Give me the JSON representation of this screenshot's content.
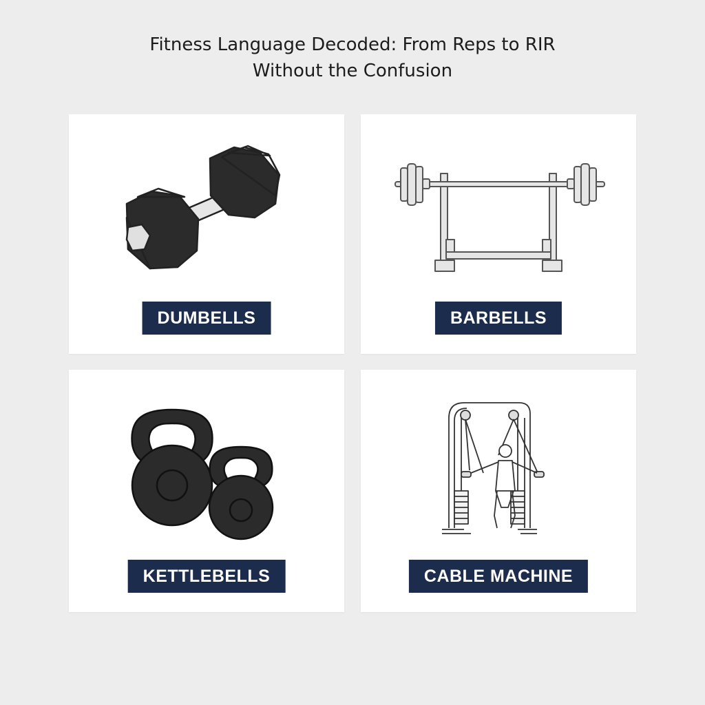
{
  "title": {
    "line1": "Fitness Language Decoded: From Reps to RIR",
    "line2": "Without the Confusion"
  },
  "cards": [
    {
      "label": "DUMBELLS",
      "icon": "dumbbell-icon"
    },
    {
      "label": "BARBELLS",
      "icon": "barbell-rack-icon"
    },
    {
      "label": "KETTLEBELLS",
      "icon": "kettlebells-icon"
    },
    {
      "label": "CABLE MACHINE",
      "icon": "cable-machine-icon"
    }
  ],
  "colors": {
    "background": "#ededed",
    "card": "#ffffff",
    "label_bg": "#1c2c4c",
    "label_text": "#ffffff",
    "equipment_dark": "#2a2a2a"
  }
}
